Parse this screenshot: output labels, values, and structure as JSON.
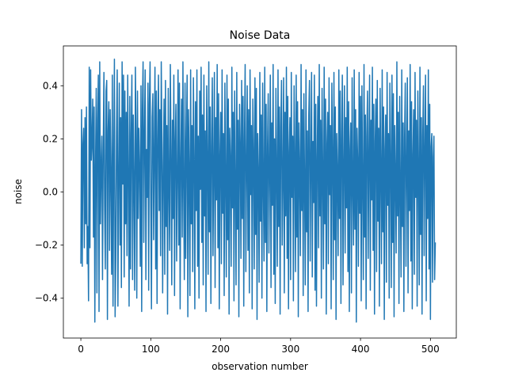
{
  "chart_data": {
    "type": "line",
    "title": "Noise Data",
    "xlabel": "observation number",
    "ylabel": "noise",
    "xlim": [
      -25,
      537
    ],
    "ylim": [
      -0.55,
      0.55
    ],
    "xticks": [
      0,
      100,
      200,
      300,
      400,
      500
    ],
    "xtick_labels": [
      "0",
      "100",
      "200",
      "300",
      "400",
      "500"
    ],
    "yticks": [
      -0.4,
      -0.2,
      0.0,
      0.2,
      0.4
    ],
    "ytick_labels": [
      "−0.4",
      "−0.2",
      "0.0",
      "0.2",
      "0.4"
    ],
    "grid": false,
    "legend": "none",
    "series": [
      {
        "color": "#1f77b4",
        "x_start": 0,
        "x_step": 1,
        "values": [
          -0.27,
          0.31,
          -0.28,
          0.18,
          0.24,
          -0.21,
          0.28,
          -0.12,
          0.32,
          -0.27,
          -0.13,
          -0.41,
          0.47,
          -0.21,
          0.46,
          0.12,
          0.19,
          0.35,
          -0.17,
          0.32,
          -0.49,
          0.1,
          0.39,
          -0.38,
          0.27,
          0.44,
          -0.45,
          0.49,
          -0.12,
          0.09,
          0.21,
          -0.33,
          0.15,
          0.45,
          -0.05,
          -0.29,
          0.38,
          0.42,
          -0.48,
          0.23,
          0.34,
          -0.22,
          0.31,
          0.05,
          -0.31,
          0.44,
          -0.43,
          0.12,
          0.5,
          -0.47,
          -0.25,
          0.21,
          0.46,
          -0.43,
          0.06,
          0.41,
          -0.2,
          0.28,
          -0.36,
          0.49,
          0.03,
          0.44,
          -0.32,
          0.38,
          -0.12,
          0.3,
          -0.24,
          0.44,
          0.07,
          -0.43,
          0.36,
          -0.29,
          0.22,
          0.44,
          -0.33,
          0.29,
          0.03,
          -0.37,
          0.47,
          0.2,
          -0.4,
          0.38,
          -0.1,
          0.24,
          0.09,
          -0.28,
          0.4,
          -0.45,
          0.31,
          0.49,
          -0.19,
          0.21,
          0.46,
          -0.33,
          0.16,
          -0.02,
          0.41,
          -0.37,
          0.33,
          0.49,
          -0.04,
          -0.44,
          0.28,
          0.37,
          -0.18,
          0.14,
          0.47,
          -0.29,
          0.38,
          -0.42,
          0.2,
          0.44,
          -0.07,
          0.31,
          -0.24,
          0.49,
          0.18,
          -0.38,
          0.1,
          0.35,
          -0.31,
          0.42,
          -0.13,
          0.25,
          -0.46,
          0.39,
          0.03,
          -0.22,
          0.48,
          0.16,
          -0.35,
          0.27,
          -0.1,
          0.44,
          -0.39,
          0.19,
          0.33,
          -0.26,
          0.06,
          0.46,
          -0.2,
          0.41,
          -0.44,
          0.12,
          0.35,
          -0.17,
          0.49,
          0.02,
          -0.33,
          0.41,
          -0.25,
          0.18,
          0.44,
          -0.47,
          0.31,
          0.08,
          -0.39,
          0.46,
          -0.12,
          0.25,
          -0.3,
          0.43,
          0.13,
          -0.44,
          0.34,
          -0.07,
          0.46,
          -0.28,
          0.21,
          -0.4,
          0.38,
          0.01,
          0.47,
          -0.19,
          0.29,
          -0.35,
          0.44,
          -0.09,
          0.23,
          -0.45,
          0.4,
          0.11,
          -0.31,
          0.49,
          -0.15,
          0.32,
          -0.42,
          0.17,
          0.43,
          -0.24,
          0.08,
          0.45,
          -0.36,
          0.28,
          -0.03,
          0.48,
          -0.21,
          0.37,
          -0.44,
          0.14,
          0.3,
          -0.27,
          0.46,
          -0.08,
          0.22,
          -0.39,
          0.41,
          0.05,
          -0.32,
          0.44,
          -0.18,
          0.35,
          -0.46,
          0.24,
          0.12,
          -0.28,
          0.47,
          -0.06,
          0.3,
          -0.41,
          0.38,
          0.02,
          -0.35,
          0.45,
          -0.14,
          0.27,
          -0.47,
          0.33,
          0.18,
          -0.25,
          0.42,
          -0.1,
          0.36,
          -0.43,
          0.2,
          0.48,
          -0.3,
          0.09,
          0.4,
          -0.22,
          0.31,
          -0.38,
          0.46,
          -0.01,
          0.25,
          -0.44,
          0.35,
          0.14,
          -0.29,
          0.43,
          -0.16,
          0.39,
          -0.48,
          0.22,
          0.07,
          -0.34,
          0.45,
          -0.11,
          0.29,
          -0.4,
          0.41,
          0.04,
          -0.26,
          0.47,
          -0.19,
          0.33,
          -0.45,
          0.17,
          0.37,
          -0.23,
          0.1,
          0.44,
          -0.36,
          0.26,
          -0.05,
          0.48,
          -0.31,
          0.2,
          -0.42,
          0.39,
          0.08,
          -0.28,
          0.46,
          -0.13,
          0.32,
          -0.46,
          0.24,
          0.42,
          -0.2,
          0.05,
          0.43,
          -0.38,
          0.3,
          -0.09,
          0.47,
          -0.25,
          0.36,
          -0.44,
          0.15,
          0.28,
          -0.33,
          0.45,
          -0.02,
          0.21,
          -0.41,
          0.4,
          0.12,
          -0.3,
          0.44,
          -0.17,
          0.34,
          -0.47,
          0.26,
          0.09,
          -0.24,
          0.48,
          -0.07,
          0.31,
          -0.39,
          0.37,
          0.03,
          -0.35,
          0.46,
          -0.15,
          0.23,
          -0.45,
          0.29,
          0.42,
          -0.26,
          0.11,
          0.45,
          -0.32,
          0.19,
          -0.04,
          0.44,
          -0.37,
          0.33,
          -0.43,
          0.13,
          0.36,
          -0.21,
          0.48,
          -0.09,
          0.27,
          -0.4,
          0.39,
          0.06,
          -0.29,
          0.47,
          -0.12,
          0.35,
          -0.46,
          0.18,
          0.3,
          -0.27,
          0.43,
          -0.01,
          0.25,
          -0.44,
          0.41,
          0.15,
          -0.33,
          0.45,
          -0.18,
          0.32,
          -0.48,
          0.22,
          0.07,
          -0.24,
          0.46,
          -0.1,
          0.38,
          -0.42,
          0.2,
          0.44,
          -0.35,
          0.09,
          0.4,
          -0.23,
          0.28,
          -0.06,
          0.47,
          -0.3,
          0.34,
          -0.45,
          0.16,
          0.26,
          -0.38,
          0.43,
          0.02,
          -0.2,
          0.46,
          -0.14,
          0.31,
          -0.49,
          0.24,
          0.11,
          -0.28,
          0.45,
          -0.08,
          0.36,
          -0.41,
          0.4,
          0.04,
          -0.33,
          0.48,
          -0.17,
          0.29,
          -0.44,
          0.21,
          0.38,
          -0.25,
          0.13,
          0.44,
          -0.37,
          0.27,
          -0.03,
          0.47,
          -0.22,
          0.33,
          -0.46,
          0.19,
          0.35,
          -0.3,
          0.42,
          -0.11,
          0.24,
          -0.43,
          0.39,
          0.08,
          -0.27,
          0.46,
          -0.15,
          0.32,
          -0.48,
          0.16,
          0.29,
          -0.34,
          0.45,
          -0.05,
          0.22,
          -0.4,
          0.41,
          0.12,
          -0.36,
          0.44,
          -0.19,
          0.37,
          -0.47,
          0.25,
          0.06,
          -0.23,
          0.49,
          -0.09,
          0.3,
          -0.42,
          0.36,
          0.01,
          -0.32,
          0.46,
          -0.13,
          0.26,
          -0.45,
          0.2,
          0.41,
          -0.28,
          0.1,
          0.43,
          -0.38,
          0.23,
          -0.07,
          0.48,
          -0.26,
          0.34,
          -0.44,
          0.14,
          0.31,
          -0.31,
          0.45,
          -0.02,
          0.27,
          -0.43,
          0.38,
          0.09,
          -0.35,
          0.47,
          -0.16,
          0.28,
          -0.46,
          0.21,
          0.4,
          -0.24,
          0.15,
          0.44,
          -0.41,
          0.25,
          -0.1,
          0.46,
          -0.29,
          0.33,
          -0.48,
          0.17,
          0.22,
          -0.34,
          0.13,
          0.21,
          -0.33,
          -0.19
        ]
      }
    ]
  }
}
